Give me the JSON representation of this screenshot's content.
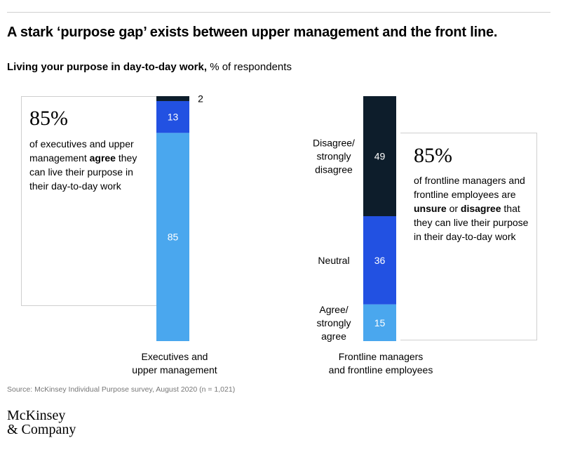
{
  "headline": "A stark ‘purpose gap’ exists between upper management and the front line.",
  "subtitle_bold": "Living your purpose in day-to-day work,",
  "subtitle_rest": " % of respondents",
  "colors": {
    "agree": "#4aa7ee",
    "neutral": "#2251e2",
    "disagree": "#0d1d2b",
    "border": "#cfcfcf"
  },
  "callout_left": {
    "big": "85%",
    "pre": "of executives and upper management ",
    "bold": "agree",
    "post": " they can live their purpose in their day-to-day work"
  },
  "callout_right": {
    "big": "85%",
    "pre": "of frontline managers and frontline employees are ",
    "bold1": "unsure",
    "mid": " or ",
    "bold2": "disagree",
    "post": " that they can live their purpose in their day-to-day work"
  },
  "chart_data": {
    "type": "bar",
    "stacked": true,
    "categories": [
      "Executives and upper management",
      "Frontline managers and frontline employees"
    ],
    "category_lines": [
      [
        "Executives and",
        "upper management"
      ],
      [
        "Frontline managers",
        "and frontline employees"
      ]
    ],
    "series": [
      {
        "name": "Agree/ strongly agree",
        "name_lines": [
          "Agree/",
          "strongly",
          "agree"
        ],
        "values": [
          85,
          15
        ],
        "color": "#4aa7ee"
      },
      {
        "name": "Neutral",
        "name_lines": [
          "Neutral"
        ],
        "values": [
          13,
          36
        ],
        "color": "#2251e2"
      },
      {
        "name": "Disagree/ strongly disagree",
        "name_lines": [
          "Disagree/",
          "strongly",
          "disagree"
        ],
        "values": [
          2,
          49
        ],
        "color": "#0d1d2b"
      }
    ],
    "ylim": [
      0,
      100
    ],
    "ylabel": "% of respondents"
  },
  "source": "Source: McKinsey Individual Purpose survey, August 2020 (n = 1,021)",
  "logo_line1": "McKinsey",
  "logo_line2": "& Company"
}
